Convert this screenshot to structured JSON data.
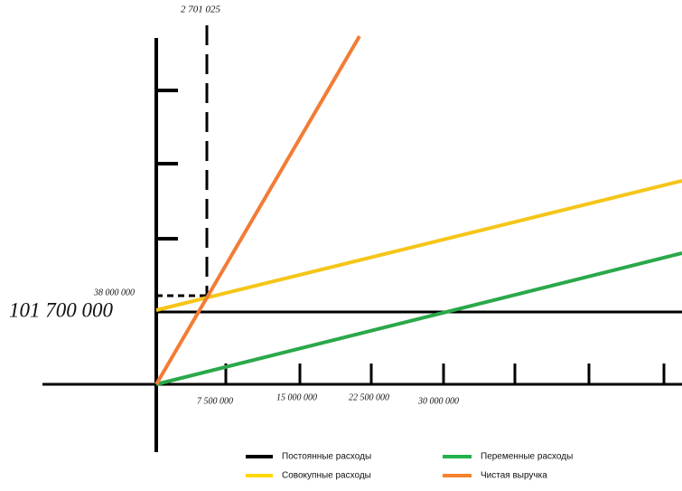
{
  "annotations": {
    "break_even_quantity": "2 701 025",
    "break_even_revenue": "38 000 000",
    "fixed_costs": "101 700 000"
  },
  "x_axis": {
    "ticks": [
      "7 500 000",
      "15 000 000",
      "22 500 000",
      "30 000 000"
    ]
  },
  "legend": [
    {
      "label": "Постоянные расходы",
      "color": "#000000"
    },
    {
      "label": "Переменные расходы",
      "color": "#22b14c"
    },
    {
      "label": "Совокупные расходы",
      "color": "#ffd800"
    },
    {
      "label": "Чистая выручка",
      "color": "#f7812a"
    }
  ]
}
